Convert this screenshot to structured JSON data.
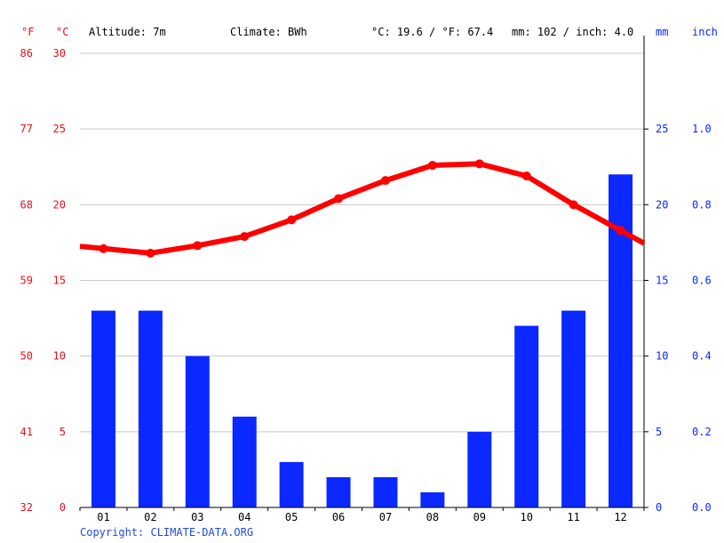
{
  "header": {
    "unit_f": "°F",
    "unit_c": "°C",
    "altitude": "Altitude: 7m",
    "climate": "Climate: BWh",
    "avg_temp": "°C: 19.6 / °F: 67.4",
    "precip": "mm: 102 / inch: 4.0",
    "unit_mm": "mm",
    "unit_inch": "inch"
  },
  "copyright": "Copyright: CLIMATE-DATA.ORG",
  "colors": {
    "temperature": "#ff0000",
    "precipitation": "#0a28ff",
    "left_axis": "#e8101a",
    "right_axis": "#0a28ff",
    "grid": "#c8c8c8"
  },
  "chart_data": {
    "type": "bar",
    "categories": [
      "01",
      "02",
      "03",
      "04",
      "05",
      "06",
      "07",
      "08",
      "09",
      "10",
      "11",
      "12"
    ],
    "series": [
      {
        "values": [
          13,
          13,
          10,
          6,
          3,
          2,
          2,
          1,
          5,
          12,
          13,
          22
        ],
        "unit": "mm",
        "type": "bar"
      },
      {
        "values": [
          17.1,
          16.8,
          17.3,
          17.9,
          19.0,
          20.4,
          21.6,
          22.6,
          22.7,
          21.9,
          20.0,
          18.3
        ],
        "unit": "°C",
        "type": "line"
      }
    ],
    "left_axis_c": {
      "ticks": [
        0,
        5,
        10,
        15,
        20,
        25,
        30
      ],
      "range": [
        0,
        30
      ]
    },
    "left_axis_f": {
      "ticks": [
        32,
        41,
        50,
        59,
        68,
        77,
        86
      ]
    },
    "right_axis_mm": {
      "ticks": [
        0,
        5,
        10,
        15,
        20,
        25
      ],
      "range": [
        0,
        30
      ]
    },
    "right_axis_inch": {
      "ticks": [
        "0.0",
        "0.2",
        "0.4",
        "0.6",
        "0.8",
        "1.0"
      ]
    },
    "grid": true
  }
}
